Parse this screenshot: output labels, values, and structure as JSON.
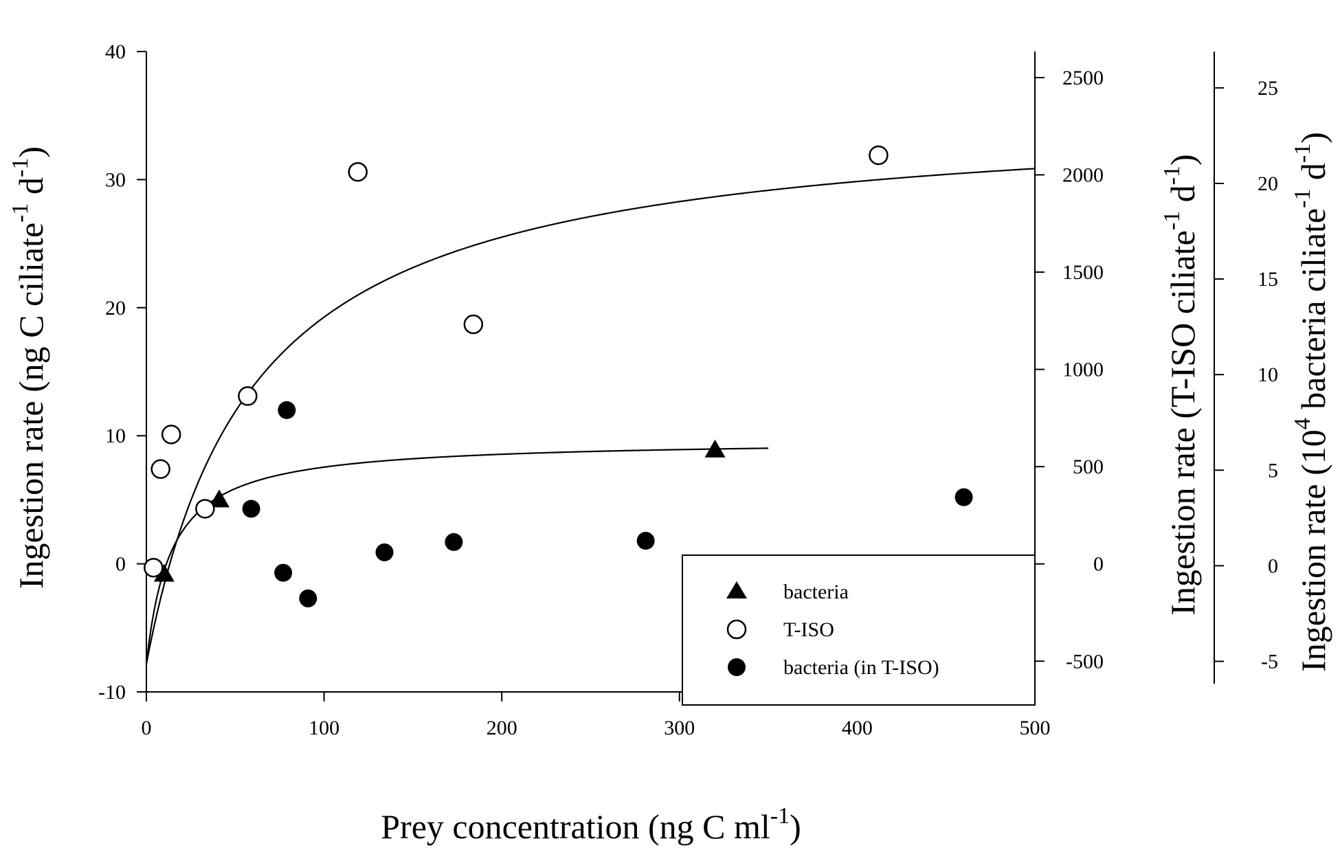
{
  "chart_data": {
    "type": "scatter",
    "xlabel": "Prey concentration (ng C ml",
    "xlabel_sup": "-1",
    "xlabel_end": ")",
    "xlim": [
      0,
      500
    ],
    "xticks": [
      0,
      100,
      200,
      300,
      400,
      500
    ],
    "y_left": {
      "label_parts": [
        "Ingestion rate (ng C ciliate",
        "-1",
        " d",
        "-1",
        ")"
      ],
      "lim": [
        -10,
        40
      ],
      "ticks": [
        -10,
        0,
        10,
        20,
        30,
        40
      ]
    },
    "y_right1": {
      "label_parts": [
        "Ingestion rate (T-ISO ciliate",
        "-1",
        " d",
        "-1",
        ")"
      ],
      "lim": [
        -658,
        2634
      ],
      "ticks": [
        -500,
        0,
        500,
        1000,
        1500,
        2000,
        2500
      ]
    },
    "y_right2": {
      "label_parts": [
        "Ingestion rate (10",
        "4",
        " bacteria ciliate",
        "-1",
        " d",
        "-1",
        ")"
      ],
      "lim": [
        -6.6,
        26.9
      ],
      "ticks": [
        -5,
        0,
        5,
        10,
        15,
        20,
        25
      ]
    },
    "series": [
      {
        "name": "bacteria",
        "marker": "filled-triangle",
        "points": [
          [
            10,
            -0.8
          ],
          [
            41,
            5.0
          ],
          [
            320,
            8.9
          ]
        ]
      },
      {
        "name": "T-ISO",
        "marker": "open-circle",
        "points": [
          [
            4,
            -0.3
          ],
          [
            8,
            7.4
          ],
          [
            14,
            10.1
          ],
          [
            33,
            4.3
          ],
          [
            57,
            13.1
          ],
          [
            119,
            30.6
          ],
          [
            184,
            18.7
          ],
          [
            412,
            31.9
          ]
        ]
      },
      {
        "name": "bacteria (in T-ISO)",
        "marker": "filled-circle",
        "points": [
          [
            59,
            4.3
          ],
          [
            77,
            -0.7
          ],
          [
            79,
            12.0
          ],
          [
            91,
            -2.7
          ],
          [
            134,
            0.9
          ],
          [
            173,
            1.7
          ],
          [
            281,
            1.8
          ],
          [
            460,
            5.2
          ]
        ]
      }
    ],
    "fits": [
      {
        "name": "T-ISO fit",
        "x_range": [
          0,
          500
        ],
        "ymax": 35.5,
        "k": 60,
        "offset": -7.8
      },
      {
        "name": "bacteria fit",
        "x_range": [
          0,
          350
        ],
        "ymax": 9.7,
        "k": 14,
        "offset": -7.8
      }
    ],
    "legend": {
      "position": "bottom-right",
      "entries": [
        "bacteria",
        "T-ISO",
        "bacteria (in T-ISO)"
      ]
    }
  }
}
